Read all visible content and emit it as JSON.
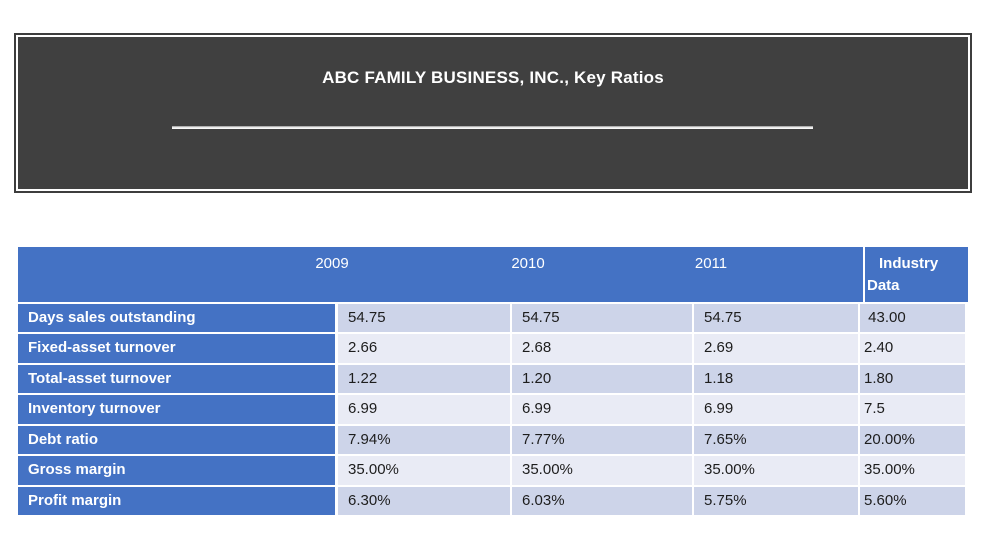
{
  "slide": {
    "title": "ABC FAMILY BUSINESS, INC., Key Ratios"
  },
  "table": {
    "year_headers": [
      "2009",
      "2010",
      "2011"
    ],
    "industry_header": "Industry Data",
    "rows": [
      {
        "label": "Days sales outstanding",
        "values": [
          "54.75",
          "54.75",
          "54.75",
          " 43.00"
        ]
      },
      {
        "label": "Fixed-asset turnover",
        "values": [
          "2.66",
          "2.68",
          "2.69",
          "2.40"
        ]
      },
      {
        "label": "Total-asset turnover",
        "values": [
          "1.22",
          "1.20",
          "1.18",
          "1.80"
        ]
      },
      {
        "label": "Inventory turnover",
        "values": [
          "6.99",
          "6.99",
          "6.99",
          "7.5"
        ]
      },
      {
        "label": "Debt ratio",
        "values": [
          "7.94%",
          "7.77%",
          "7.65%",
          "20.00%"
        ]
      },
      {
        "label": "Gross margin",
        "values": [
          "35.00%",
          "35.00%",
          "35.00%",
          "35.00%"
        ]
      },
      {
        "label": "Profit margin",
        "values": [
          "6.30%",
          "6.03%",
          "5.75%",
          "5.60%"
        ]
      }
    ]
  },
  "colors": {
    "header_blue": "#4472C4",
    "band_dark": "#CDD4E9",
    "band_light": "#E9EBF5",
    "title_box_fill": "#404040",
    "title_box_border": "#3d3d3d",
    "text_dark": "#1d1d1d"
  }
}
